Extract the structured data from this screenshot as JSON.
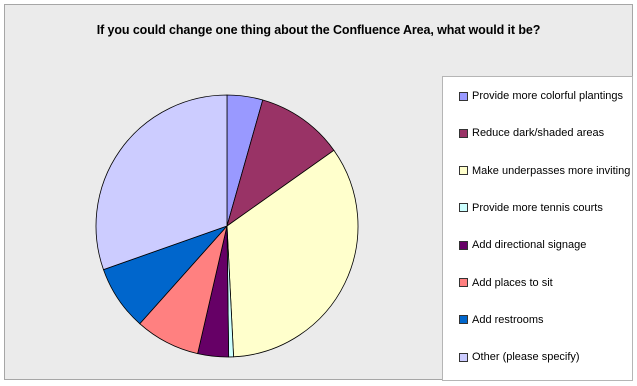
{
  "chart_data": {
    "type": "pie",
    "title": "If you could change one thing about the Confluence Area, what would it be?",
    "categories": [
      "Provide more colorful plantings",
      "Reduce dark/shaded areas",
      "Make underpasses more inviting",
      "Provide more tennis courts",
      "Add directional signage",
      "Add places to sit",
      "Add restrooms",
      "Other (please specify)"
    ],
    "values": [
      4.4,
      10.8,
      34.0,
      0.6,
      3.8,
      8.0,
      8.0,
      30.4
    ],
    "unit": "percent (estimated)",
    "colors": [
      "#9999ff",
      "#993366",
      "#ffffcc",
      "#ccffff",
      "#660066",
      "#ff8080",
      "#0066cc",
      "#ccccff"
    ],
    "start_angle": "12 o'clock",
    "direction": "clockwise",
    "legend_position": "right"
  }
}
